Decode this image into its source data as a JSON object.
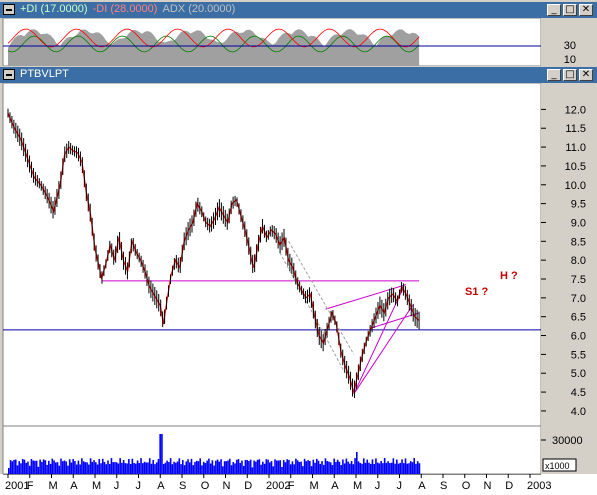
{
  "indicator_panel": {
    "title_plus_di": "+DI (17.0000)",
    "title_minus_di": "-DI (28.0000)",
    "title_adx": "ADX (20.0000)",
    "colors": {
      "plus_di": "#008000",
      "minus_di": "#ff0000",
      "adx_fill": "#a0a0a0",
      "bar": "#3a6ea5"
    },
    "y_ticks": [
      "30",
      "10"
    ]
  },
  "price_panel": {
    "title": "PTBVLPT",
    "annotations": {
      "h": "H ?",
      "s1": "S1 ?"
    },
    "colors": {
      "price": "#ff0000",
      "support_line": "#0000a0",
      "trend_lines": "#cc00cc",
      "channel": "#a0a0a0"
    }
  },
  "volume_panel": {
    "y_tick": "30000",
    "unit": "x1000",
    "colors": {
      "bars": "#0000ff"
    }
  },
  "window_buttons": {
    "minimize": "_",
    "restore": "□",
    "close": "✕"
  },
  "chart_data": {
    "type": "line",
    "x_tick_labels": [
      "2001",
      "F",
      "M",
      "A",
      "M",
      "J",
      "J",
      "A",
      "S",
      "O",
      "N",
      "D",
      "2002",
      "F",
      "M",
      "A",
      "M",
      "J",
      "J",
      "A",
      "S",
      "O",
      "N",
      "D",
      "2003"
    ],
    "y_ticks": [
      4.0,
      4.5,
      5.0,
      5.5,
      6.0,
      6.5,
      7.0,
      7.5,
      8.0,
      8.5,
      9.0,
      9.5,
      10.0,
      10.5,
      11.0,
      11.5,
      12.0
    ],
    "ylim": [
      3.6,
      12.7
    ],
    "series": [
      {
        "values": [
          [
            0,
            11.9
          ],
          [
            0.3,
            11.5
          ],
          [
            0.6,
            11.2
          ],
          [
            0.9,
            10.7
          ],
          [
            1.2,
            10.2
          ],
          [
            1.5,
            10.0
          ],
          [
            1.8,
            9.7
          ],
          [
            2.1,
            9.3
          ],
          [
            2.4,
            10.0
          ],
          [
            2.6,
            10.8
          ],
          [
            2.8,
            11.0
          ],
          [
            3.0,
            10.9
          ],
          [
            3.2,
            10.85
          ],
          [
            3.4,
            10.6
          ],
          [
            3.6,
            9.8
          ],
          [
            3.8,
            9.2
          ],
          [
            4.0,
            8.3
          ],
          [
            4.2,
            7.8
          ],
          [
            4.3,
            7.5
          ],
          [
            4.5,
            7.9
          ],
          [
            4.7,
            8.4
          ],
          [
            4.9,
            8.0
          ],
          [
            5.1,
            8.6
          ],
          [
            5.3,
            8.0
          ],
          [
            5.5,
            7.7
          ],
          [
            5.7,
            8.5
          ],
          [
            5.9,
            8.2
          ],
          [
            6.1,
            8.0
          ],
          [
            6.3,
            7.7
          ],
          [
            6.5,
            7.3
          ],
          [
            6.8,
            7.0
          ],
          [
            7.0,
            6.8
          ],
          [
            7.15,
            6.3
          ],
          [
            7.3,
            6.9
          ],
          [
            7.5,
            7.6
          ],
          [
            7.7,
            8.0
          ],
          [
            7.9,
            7.8
          ],
          [
            8.1,
            8.5
          ],
          [
            8.3,
            8.8
          ],
          [
            8.5,
            9.0
          ],
          [
            8.7,
            9.5
          ],
          [
            8.9,
            9.3
          ],
          [
            9.1,
            9.0
          ],
          [
            9.3,
            8.9
          ],
          [
            9.5,
            9.1
          ],
          [
            9.7,
            9.4
          ],
          [
            9.9,
            9.2
          ],
          [
            10.1,
            9.0
          ],
          [
            10.3,
            9.5
          ],
          [
            10.5,
            9.6
          ],
          [
            10.7,
            9.2
          ],
          [
            10.9,
            8.8
          ],
          [
            11.1,
            8.3
          ],
          [
            11.2,
            8.0
          ],
          [
            11.3,
            7.8
          ],
          [
            11.5,
            8.4
          ],
          [
            11.7,
            8.9
          ],
          [
            11.9,
            8.6
          ],
          [
            12.1,
            8.8
          ],
          [
            12.3,
            8.7
          ],
          [
            12.5,
            8.4
          ],
          [
            12.7,
            8.6
          ],
          [
            12.9,
            8.0
          ],
          [
            13.1,
            7.8
          ],
          [
            13.3,
            7.4
          ],
          [
            13.5,
            7.2
          ],
          [
            13.7,
            7.0
          ],
          [
            13.9,
            7.1
          ],
          [
            14.1,
            6.5
          ],
          [
            14.3,
            6.0
          ],
          [
            14.5,
            5.8
          ],
          [
            14.7,
            6.2
          ],
          [
            14.9,
            6.6
          ],
          [
            15.1,
            6.3
          ],
          [
            15.3,
            5.6
          ],
          [
            15.5,
            5.2
          ],
          [
            15.7,
            4.9
          ],
          [
            15.9,
            4.5
          ],
          [
            16.1,
            5.0
          ],
          [
            16.3,
            5.5
          ],
          [
            16.5,
            5.9
          ],
          [
            16.7,
            6.2
          ],
          [
            16.9,
            6.5
          ],
          [
            17.1,
            6.8
          ],
          [
            17.3,
            6.6
          ],
          [
            17.5,
            7.0
          ],
          [
            17.7,
            7.1
          ],
          [
            17.9,
            6.9
          ],
          [
            18.1,
            7.3
          ],
          [
            18.3,
            7.1
          ],
          [
            18.5,
            6.8
          ],
          [
            18.7,
            6.5
          ],
          [
            18.9,
            6.4
          ]
        ]
      }
    ]
  }
}
